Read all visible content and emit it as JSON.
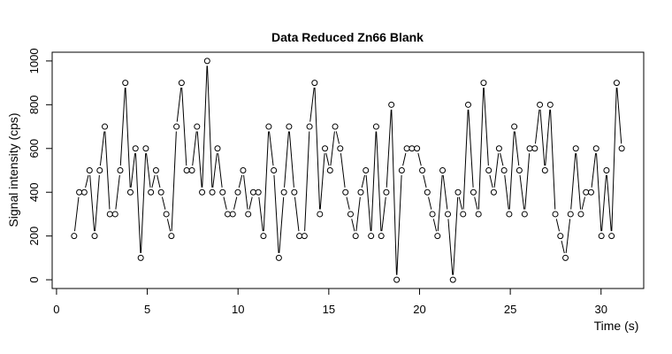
{
  "chart_data": {
    "type": "line",
    "title": "Data Reduced Zn66 Blank",
    "x_label": "Time (s)",
    "y_label": "Signal intensity (cps)",
    "x": [
      0.97,
      1.25,
      1.53,
      1.82,
      2.1,
      2.38,
      2.66,
      2.94,
      3.23,
      3.51,
      3.79,
      4.07,
      4.35,
      4.64,
      4.92,
      5.2,
      5.48,
      5.76,
      6.05,
      6.33,
      6.61,
      6.89,
      7.17,
      7.46,
      7.74,
      8.02,
      8.3,
      8.58,
      8.87,
      9.15,
      9.43,
      9.71,
      9.99,
      10.28,
      10.56,
      10.84,
      11.12,
      11.4,
      11.69,
      11.97,
      12.25,
      12.53,
      12.81,
      13.1,
      13.38,
      13.66,
      13.94,
      14.22,
      14.51,
      14.79,
      15.07,
      15.35,
      15.63,
      15.92,
      16.2,
      16.48,
      16.76,
      17.04,
      17.33,
      17.61,
      17.89,
      18.17,
      18.45,
      18.74,
      19.02,
      19.3,
      19.58,
      19.86,
      20.15,
      20.43,
      20.71,
      20.99,
      21.27,
      21.56,
      21.84,
      22.12,
      22.4,
      22.68,
      22.97,
      23.25,
      23.53,
      23.81,
      24.09,
      24.38,
      24.66,
      24.94,
      25.22,
      25.5,
      25.79,
      26.07,
      26.35,
      26.63,
      26.91,
      27.2,
      27.48,
      27.76,
      28.04,
      28.32,
      28.61,
      28.89,
      29.17,
      29.45,
      29.73,
      30.02,
      30.3,
      30.58,
      30.86,
      31.14
    ],
    "series": [
      {
        "color": "#000000",
        "values": [
          200,
          400,
          400,
          500,
          200,
          500,
          700,
          300,
          300,
          500,
          900,
          400,
          600,
          100,
          600,
          400,
          500,
          400,
          300,
          200,
          700,
          900,
          500,
          500,
          700,
          400,
          1000,
          400,
          600,
          400,
          300,
          300,
          400,
          500,
          300,
          400,
          400,
          200,
          700,
          500,
          100,
          400,
          700,
          400,
          200,
          200,
          700,
          900,
          300,
          600,
          500,
          700,
          600,
          400,
          300,
          200,
          400,
          500,
          200,
          700,
          200,
          400,
          800,
          0,
          500,
          600,
          600,
          600,
          500,
          400,
          300,
          200,
          500,
          300,
          0,
          400,
          300,
          800,
          400,
          300,
          900,
          500,
          400,
          600,
          500,
          300,
          700,
          500,
          300,
          600,
          600,
          800,
          500,
          800,
          300,
          200,
          100,
          300,
          600,
          300,
          400,
          400,
          600,
          200,
          500,
          200,
          900,
          600
        ]
      }
    ],
    "xlim": [
      -0.24,
      32.35
    ],
    "ylim": [
      -40,
      1040
    ],
    "xticks": [
      0,
      5,
      10,
      15,
      20,
      25,
      30
    ],
    "yticks": [
      0,
      200,
      400,
      600,
      800,
      1000
    ]
  }
}
